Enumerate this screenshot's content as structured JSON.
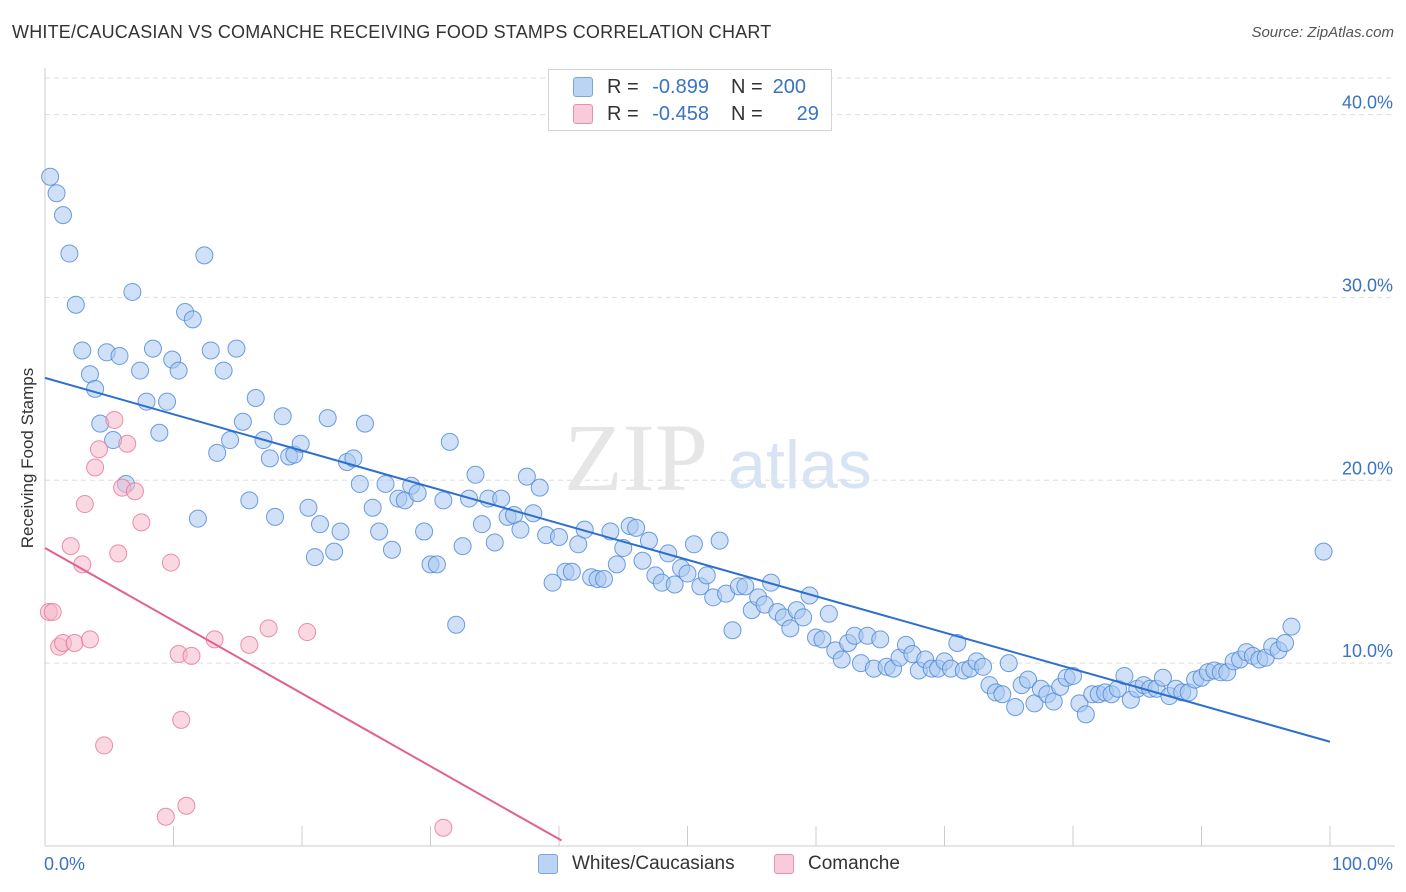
{
  "title": "WHITE/CAUCASIAN VS COMANCHE RECEIVING FOOD STAMPS CORRELATION CHART",
  "source": "Source: ZipAtlas.com",
  "watermark": {
    "zip": "ZIP",
    "atlas": "atlas"
  },
  "legend": {
    "rows": [
      {
        "r_label": "R =",
        "r_value": "-0.899",
        "n_label": "N =",
        "n_value": "200",
        "color": "#a9c8f0"
      },
      {
        "r_label": "R =",
        "r_value": "-0.458",
        "n_label": "N =",
        "n_value": "29",
        "color": "#f4b8cb"
      }
    ]
  },
  "bottom_legend": [
    "Whites/Caucasians",
    "Comanche"
  ],
  "chart_data": {
    "type": "scatter",
    "xlabel": "",
    "ylabel": "Receiving Food Stamps",
    "xlim": [
      0,
      100
    ],
    "ylim": [
      0,
      42
    ],
    "x_tick_labels": [
      "0.0%",
      "100.0%"
    ],
    "y_ticks": [
      10,
      20,
      30,
      40
    ],
    "y_tick_labels": [
      "10.0%",
      "20.0%",
      "30.0%",
      "40.0%"
    ],
    "grid": true,
    "series": [
      {
        "name": "Whites/Caucasians",
        "color": "#4a86d8",
        "fill": "#a9c8f0",
        "trend": {
          "x0": 0,
          "y0": 25.6,
          "x1": 100,
          "y1": 5.7,
          "color": "#2f6fcc"
        },
        "points": [
          [
            0.4,
            36.6
          ],
          [
            0.9,
            35.7
          ],
          [
            1.4,
            34.5
          ],
          [
            1.9,
            32.4
          ],
          [
            2.4,
            29.6
          ],
          [
            2.9,
            27.1
          ],
          [
            3.5,
            25.8
          ],
          [
            3.9,
            25.0
          ],
          [
            4.3,
            23.1
          ],
          [
            4.8,
            27.0
          ],
          [
            5.3,
            22.2
          ],
          [
            5.8,
            26.8
          ],
          [
            6.3,
            19.8
          ],
          [
            6.8,
            30.3
          ],
          [
            7.4,
            26.0
          ],
          [
            7.9,
            24.3
          ],
          [
            8.4,
            27.2
          ],
          [
            8.9,
            22.6
          ],
          [
            9.5,
            24.3
          ],
          [
            9.9,
            26.6
          ],
          [
            10.4,
            26.0
          ],
          [
            10.9,
            29.2
          ],
          [
            11.5,
            28.8
          ],
          [
            11.9,
            17.9
          ],
          [
            12.4,
            32.3
          ],
          [
            12.9,
            27.1
          ],
          [
            13.4,
            21.5
          ],
          [
            13.9,
            26.0
          ],
          [
            14.4,
            22.2
          ],
          [
            14.9,
            27.2
          ],
          [
            15.4,
            23.2
          ],
          [
            15.9,
            18.9
          ],
          [
            16.4,
            24.5
          ],
          [
            17.0,
            22.2
          ],
          [
            17.5,
            21.2
          ],
          [
            17.9,
            18.0
          ],
          [
            18.5,
            23.5
          ],
          [
            19.0,
            21.3
          ],
          [
            19.4,
            21.4
          ],
          [
            19.9,
            22.0
          ],
          [
            20.5,
            18.5
          ],
          [
            21.0,
            15.8
          ],
          [
            21.4,
            17.6
          ],
          [
            22.0,
            23.4
          ],
          [
            22.5,
            16.1
          ],
          [
            23.0,
            17.2
          ],
          [
            23.5,
            21.0
          ],
          [
            24.0,
            21.2
          ],
          [
            24.5,
            19.8
          ],
          [
            24.9,
            23.1
          ],
          [
            25.5,
            18.5
          ],
          [
            26.0,
            17.2
          ],
          [
            26.5,
            19.8
          ],
          [
            27.0,
            16.2
          ],
          [
            27.5,
            19.0
          ],
          [
            28.0,
            18.9
          ],
          [
            28.5,
            19.7
          ],
          [
            29.0,
            19.3
          ],
          [
            29.5,
            17.2
          ],
          [
            30.0,
            15.4
          ],
          [
            30.5,
            15.4
          ],
          [
            31.0,
            18.9
          ],
          [
            31.5,
            22.1
          ],
          [
            32.0,
            12.1
          ],
          [
            32.5,
            16.4
          ],
          [
            33.0,
            19.0
          ],
          [
            33.5,
            20.3
          ],
          [
            34.0,
            17.6
          ],
          [
            34.5,
            19.0
          ],
          [
            35.0,
            16.6
          ],
          [
            35.5,
            19.0
          ],
          [
            36.0,
            18.0
          ],
          [
            36.5,
            18.1
          ],
          [
            37.0,
            17.3
          ],
          [
            37.5,
            20.2
          ],
          [
            38.0,
            18.2
          ],
          [
            38.5,
            19.6
          ],
          [
            39.0,
            17.0
          ],
          [
            39.5,
            14.4
          ],
          [
            40.0,
            16.9
          ],
          [
            40.5,
            15.0
          ],
          [
            41.0,
            15.0
          ],
          [
            41.5,
            16.5
          ],
          [
            42.0,
            17.3
          ],
          [
            42.5,
            14.7
          ],
          [
            43.0,
            14.6
          ],
          [
            43.5,
            14.6
          ],
          [
            44.0,
            17.2
          ],
          [
            44.5,
            15.4
          ],
          [
            45.0,
            16.3
          ],
          [
            45.5,
            17.5
          ],
          [
            46.0,
            17.4
          ],
          [
            46.5,
            15.6
          ],
          [
            47.0,
            16.7
          ],
          [
            47.5,
            14.8
          ],
          [
            48.0,
            14.4
          ],
          [
            48.5,
            16.0
          ],
          [
            49.0,
            14.3
          ],
          [
            49.5,
            15.2
          ],
          [
            50.0,
            14.9
          ],
          [
            50.5,
            16.5
          ],
          [
            51.0,
            14.2
          ],
          [
            51.5,
            14.8
          ],
          [
            52.0,
            13.6
          ],
          [
            52.5,
            16.7
          ],
          [
            53.0,
            13.8
          ],
          [
            53.5,
            11.8
          ],
          [
            54.0,
            14.2
          ],
          [
            54.5,
            14.2
          ],
          [
            55.0,
            12.9
          ],
          [
            55.5,
            13.6
          ],
          [
            56.0,
            13.2
          ],
          [
            56.5,
            14.4
          ],
          [
            57.0,
            12.8
          ],
          [
            57.5,
            12.5
          ],
          [
            58.0,
            11.9
          ],
          [
            58.5,
            12.9
          ],
          [
            59.0,
            12.5
          ],
          [
            59.5,
            13.7
          ],
          [
            60.0,
            11.4
          ],
          [
            60.5,
            11.3
          ],
          [
            61.0,
            12.7
          ],
          [
            61.5,
            10.7
          ],
          [
            62.0,
            10.2
          ],
          [
            62.5,
            11.1
          ],
          [
            63.0,
            11.5
          ],
          [
            63.5,
            10.0
          ],
          [
            64.0,
            11.5
          ],
          [
            64.5,
            9.7
          ],
          [
            65.0,
            11.3
          ],
          [
            65.5,
            9.8
          ],
          [
            66.0,
            9.7
          ],
          [
            66.5,
            10.3
          ],
          [
            67.0,
            11.0
          ],
          [
            67.5,
            10.5
          ],
          [
            68.0,
            9.6
          ],
          [
            68.5,
            10.2
          ],
          [
            69.0,
            9.7
          ],
          [
            69.5,
            9.7
          ],
          [
            70.0,
            10.1
          ],
          [
            70.5,
            9.7
          ],
          [
            71.0,
            11.1
          ],
          [
            71.5,
            9.6
          ],
          [
            72.0,
            9.7
          ],
          [
            72.5,
            10.1
          ],
          [
            73.0,
            9.8
          ],
          [
            73.5,
            8.8
          ],
          [
            74.0,
            8.4
          ],
          [
            74.5,
            8.3
          ],
          [
            75.0,
            10.0
          ],
          [
            75.5,
            7.6
          ],
          [
            76.0,
            8.8
          ],
          [
            76.5,
            9.1
          ],
          [
            77.0,
            7.8
          ],
          [
            77.5,
            8.6
          ],
          [
            78.0,
            8.3
          ],
          [
            78.5,
            7.9
          ],
          [
            79.0,
            8.7
          ],
          [
            79.5,
            9.2
          ],
          [
            80.0,
            9.3
          ],
          [
            80.5,
            7.8
          ],
          [
            81.0,
            7.2
          ],
          [
            81.5,
            8.3
          ],
          [
            82.0,
            8.3
          ],
          [
            82.5,
            8.4
          ],
          [
            83.0,
            8.3
          ],
          [
            83.5,
            8.6
          ],
          [
            84.0,
            9.3
          ],
          [
            84.5,
            8.0
          ],
          [
            85.0,
            8.6
          ],
          [
            85.5,
            8.8
          ],
          [
            86.0,
            8.6
          ],
          [
            86.5,
            8.6
          ],
          [
            87.0,
            9.2
          ],
          [
            87.5,
            8.2
          ],
          [
            88.0,
            8.6
          ],
          [
            88.5,
            8.4
          ],
          [
            89.0,
            8.4
          ],
          [
            89.5,
            9.1
          ],
          [
            90.0,
            9.2
          ],
          [
            90.5,
            9.5
          ],
          [
            91.0,
            9.6
          ],
          [
            91.5,
            9.5
          ],
          [
            92.0,
            9.5
          ],
          [
            92.5,
            10.1
          ],
          [
            93.0,
            10.2
          ],
          [
            93.5,
            10.6
          ],
          [
            94.0,
            10.4
          ],
          [
            94.5,
            10.2
          ],
          [
            95.0,
            10.3
          ],
          [
            95.5,
            10.9
          ],
          [
            96.0,
            10.7
          ],
          [
            96.5,
            11.1
          ],
          [
            97.0,
            12.0
          ],
          [
            99.5,
            16.1
          ]
        ]
      },
      {
        "name": "Comanche",
        "color": "#e8739a",
        "fill": "#f4b8cb",
        "trend": {
          "x0": 0,
          "y0": 16.3,
          "x1": 40.2,
          "y1": 0.3,
          "color": "#e0628e"
        },
        "points": [
          [
            0.3,
            12.8
          ],
          [
            0.6,
            12.8
          ],
          [
            1.1,
            10.9
          ],
          [
            1.4,
            11.1
          ],
          [
            2.0,
            16.4
          ],
          [
            2.3,
            11.1
          ],
          [
            2.9,
            15.4
          ],
          [
            3.1,
            18.7
          ],
          [
            3.5,
            11.3
          ],
          [
            3.9,
            20.7
          ],
          [
            4.2,
            21.7
          ],
          [
            4.6,
            5.5
          ],
          [
            5.4,
            23.3
          ],
          [
            5.7,
            16.0
          ],
          [
            6.0,
            19.6
          ],
          [
            6.4,
            22.0
          ],
          [
            7.0,
            19.4
          ],
          [
            7.5,
            17.7
          ],
          [
            9.4,
            1.6
          ],
          [
            9.8,
            15.5
          ],
          [
            10.4,
            10.5
          ],
          [
            10.6,
            6.9
          ],
          [
            11.0,
            2.2
          ],
          [
            11.4,
            10.4
          ],
          [
            13.2,
            11.3
          ],
          [
            15.9,
            11.0
          ],
          [
            17.4,
            11.9
          ],
          [
            20.4,
            11.7
          ],
          [
            31.0,
            1.0
          ]
        ]
      }
    ]
  }
}
